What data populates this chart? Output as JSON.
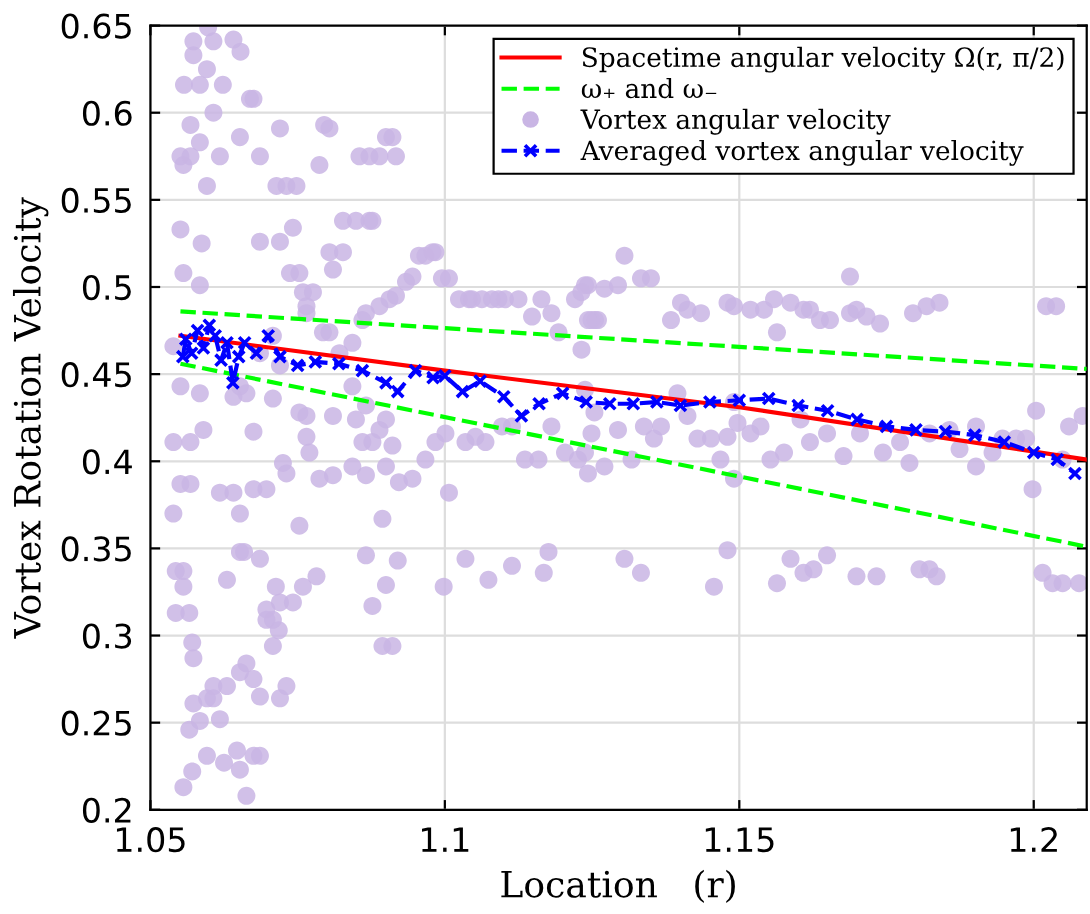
{
  "chart_data": {
    "type": "scatter",
    "xlabel": "Location   (r)",
    "ylabel": "Vortex Rotation Velocity",
    "xlim": [
      1.05,
      1.209
    ],
    "ylim": [
      0.2,
      0.65
    ],
    "xticks": [
      1.05,
      1.1,
      1.15,
      1.2
    ],
    "yticks": [
      0.2,
      0.25,
      0.3,
      0.35,
      0.4,
      0.45,
      0.5,
      0.55,
      0.6,
      0.65
    ],
    "grid": true,
    "legend": "top right",
    "series": [
      {
        "name": "Spacetime angular velocity Ω(r, π/2)",
        "type": "line",
        "color": "#ff0000",
        "line_style": "solid",
        "marker": "none",
        "x": [
          1.0551,
          1.1,
          1.15,
          1.209
        ],
        "values": [
          0.472,
          0.452,
          0.431,
          0.401
        ]
      },
      {
        "name": "ω₊ and ω₋",
        "type": "line",
        "color": "#00ff00",
        "line_style": "dashed",
        "marker": "none",
        "x": [
          1.0551,
          1.209
        ],
        "values": [
          0.486,
          0.453
        ]
      },
      {
        "type": "line",
        "color": "#00ff00",
        "line_style": "dashed",
        "marker": "none",
        "x": [
          1.0551,
          1.209
        ],
        "values": [
          0.456,
          0.351
        ]
      },
      {
        "name": "Vortex angular velocity",
        "color": "#c9b5e4",
        "marker": "circle",
        "x": [
          1.0556,
          1.0551,
          1.0568,
          1.0573,
          1.0557,
          1.0584,
          1.0573,
          1.0598,
          1.0607,
          1.0596,
          1.0607,
          1.0618,
          1.0596,
          1.0584,
          1.0568,
          1.0551,
          1.0556,
          1.0584,
          1.0587,
          1.0539,
          1.0551,
          1.0584,
          1.059,
          1.0539,
          1.0568,
          1.0551,
          1.0568,
          1.0539,
          1.0556,
          1.0543,
          1.0556,
          1.0566,
          1.0543,
          1.0573,
          1.0571,
          1.0573,
          1.0596,
          1.0607,
          1.0584,
          1.0566,
          1.0556,
          1.0571,
          1.0596,
          1.0618,
          1.0607,
          1.063,
          1.0625,
          1.0652,
          1.0647,
          1.0663,
          1.0675,
          1.0686,
          1.0686,
          1.0663,
          1.0652,
          1.0675,
          1.0708,
          1.0697,
          1.0697,
          1.0708,
          1.0718,
          1.0713,
          1.0686,
          1.0659,
          1.0652,
          1.063,
          1.0652,
          1.0618,
          1.0641,
          1.0675,
          1.0697,
          1.0675,
          1.0641,
          1.0652,
          1.0663,
          1.0708,
          1.0753,
          1.0765,
          1.0725,
          1.0731,
          1.0753,
          1.072,
          1.0742,
          1.0759,
          1.0782,
          1.0731,
          1.072,
          1.072,
          1.0686,
          1.0708,
          1.0686,
          1.072,
          1.0742,
          1.0737,
          1.0753,
          1.0759,
          1.0765,
          1.0776,
          1.0765,
          1.0793,
          1.0804,
          1.081,
          1.0827,
          1.0804,
          1.0821,
          1.0843,
          1.086,
          1.0866,
          1.0889,
          1.0906,
          1.0917,
          1.0934,
          1.0945,
          1.0956,
          1.0967,
          1.0984,
          1.0979,
          1.0995,
          1.1007,
          1.1024,
          1.1041,
          1.1046,
          1.1063,
          1.108,
          1.1091,
          1.1102,
          1.1125,
          1.1148,
          1.1164,
          1.1181,
          1.1193,
          1.1221,
          1.1243,
          1.1255,
          1.072,
          1.0731,
          1.0714,
          1.0748,
          1.0787,
          1.0795,
          1.0804,
          1.0827,
          1.0849,
          1.0872,
          1.0877,
          1.0855,
          1.0872,
          1.0889,
          1.0917,
          1.09,
          1.0911,
          1.0641,
          1.0653,
          1.0675,
          1.0669,
          1.0623,
          1.0652,
          1.0686,
          1.081,
          1.0849,
          1.0843,
          1.0866,
          1.0889,
          1.086,
          1.0877,
          1.09,
          1.0911,
          1.09,
          1.0866,
          1.0843,
          1.081,
          1.0787,
          1.0765,
          1.077,
          1.0922,
          1.0945,
          1.0967,
          1.0984,
          1.1001,
          1.1035,
          1.1052,
          1.1069,
          1.1007,
          1.0894,
          1.0866,
          1.09,
          1.0877,
          1.0894,
          1.0911,
          1.092,
          1.0998,
          1.1035,
          1.1074,
          1.1114,
          1.1168,
          1.1176,
          1.1097,
          1.1114,
          1.1136,
          1.1159,
          1.1181,
          1.1204,
          1.1226,
          1.1243,
          1.1294,
          1.1305,
          1.1333,
          1.135,
          1.1271,
          1.126,
          1.1249,
          1.1243,
          1.1238,
          1.1232,
          1.1232,
          1.1238,
          1.1254,
          1.1249,
          1.1238,
          1.1271,
          1.1294,
          1.1317,
          1.1338,
          1.1355,
          1.1367,
          1.1384,
          1.1401,
          1.1412,
          1.1435,
          1.1395,
          1.1412,
          1.1429,
          1.1452,
          1.1468,
          1.148,
          1.1491,
          1.1491,
          1.148,
          1.1457,
          1.1305,
          1.1333,
          1.1587,
          1.1609,
          1.1626,
          1.1649,
          1.1564,
          1.1699,
          1.1733,
          1.1806,
          1.1823,
          1.1835,
          1.148,
          1.1491,
          1.1519,
          1.1542,
          1.1559,
          1.1587,
          1.1564,
          1.1609,
          1.162,
          1.1637,
          1.1654,
          1.1688,
          1.1699,
          1.1716,
          1.1739,
          1.1795,
          1.1818,
          1.184,
          1.1688,
          1.1497,
          1.1519,
          1.1536,
          1.1553,
          1.1576,
          1.1604,
          1.162,
          1.1649,
          1.1677,
          1.1705,
          1.1744,
          1.1773,
          1.1789,
          1.1823,
          1.1857,
          1.1874,
          1.1902,
          1.1902,
          1.193,
          1.1947,
          1.197,
          1.1987,
          1.1998,
          1.2004,
          1.2015,
          1.2032,
          1.2049,
          1.2021,
          1.2038,
          1.206,
          1.2083,
          1.2077,
          1.2049
        ],
        "values": [
          0.57,
          0.575,
          0.575,
          0.633,
          0.616,
          0.616,
          0.641,
          0.649,
          0.641,
          0.625,
          0.6,
          0.575,
          0.558,
          0.583,
          0.593,
          0.533,
          0.508,
          0.501,
          0.525,
          0.466,
          0.443,
          0.439,
          0.418,
          0.411,
          0.411,
          0.387,
          0.387,
          0.37,
          0.337,
          0.337,
          0.328,
          0.313,
          0.313,
          0.287,
          0.296,
          0.261,
          0.264,
          0.264,
          0.251,
          0.246,
          0.213,
          0.222,
          0.231,
          0.252,
          0.271,
          0.271,
          0.227,
          0.223,
          0.234,
          0.208,
          0.231,
          0.231,
          0.265,
          0.284,
          0.279,
          0.275,
          0.309,
          0.315,
          0.309,
          0.294,
          0.303,
          0.328,
          0.344,
          0.348,
          0.348,
          0.332,
          0.37,
          0.382,
          0.382,
          0.384,
          0.384,
          0.417,
          0.437,
          0.443,
          0.439,
          0.436,
          0.428,
          0.426,
          0.399,
          0.393,
          0.363,
          0.319,
          0.319,
          0.328,
          0.334,
          0.271,
          0.264,
          0.455,
          0.462,
          0.472,
          0.526,
          0.526,
          0.534,
          0.508,
          0.508,
          0.497,
          0.489,
          0.497,
          0.485,
          0.474,
          0.52,
          0.51,
          0.52,
          0.474,
          0.462,
          0.468,
          0.481,
          0.485,
          0.489,
          0.493,
          0.495,
          0.503,
          0.506,
          0.518,
          0.518,
          0.52,
          0.52,
          0.505,
          0.505,
          0.493,
          0.493,
          0.493,
          0.493,
          0.493,
          0.493,
          0.493,
          0.493,
          0.483,
          0.493,
          0.485,
          0.474,
          0.493,
          0.501,
          0.481,
          0.591,
          0.558,
          0.558,
          0.558,
          0.57,
          0.593,
          0.591,
          0.538,
          0.538,
          0.538,
          0.538,
          0.575,
          0.575,
          0.575,
          0.575,
          0.586,
          0.586,
          0.642,
          0.635,
          0.608,
          0.608,
          0.616,
          0.586,
          0.575,
          0.426,
          0.424,
          0.443,
          0.432,
          0.418,
          0.411,
          0.411,
          0.424,
          0.409,
          0.397,
          0.392,
          0.397,
          0.392,
          0.39,
          0.414,
          0.405,
          0.388,
          0.39,
          0.401,
          0.411,
          0.416,
          0.411,
          0.414,
          0.411,
          0.382,
          0.367,
          0.346,
          0.329,
          0.317,
          0.294,
          0.294,
          0.343,
          0.328,
          0.344,
          0.332,
          0.34,
          0.336,
          0.348,
          0.42,
          0.42,
          0.401,
          0.401,
          0.42,
          0.405,
          0.401,
          0.393,
          0.501,
          0.518,
          0.505,
          0.505,
          0.499,
          0.481,
          0.481,
          0.481,
          0.501,
          0.497,
          0.464,
          0.441,
          0.428,
          0.416,
          0.405,
          0.397,
          0.418,
          0.401,
          0.42,
          0.413,
          0.42,
          0.481,
          0.491,
          0.487,
          0.485,
          0.439,
          0.426,
          0.413,
          0.413,
          0.401,
          0.414,
          0.434,
          0.39,
          0.349,
          0.328,
          0.344,
          0.336,
          0.344,
          0.336,
          0.338,
          0.346,
          0.33,
          0.334,
          0.334,
          0.338,
          0.338,
          0.334,
          0.491,
          0.489,
          0.487,
          0.487,
          0.493,
          0.491,
          0.474,
          0.487,
          0.487,
          0.481,
          0.481,
          0.485,
          0.487,
          0.483,
          0.479,
          0.485,
          0.489,
          0.491,
          0.506,
          0.422,
          0.416,
          0.42,
          0.401,
          0.405,
          0.424,
          0.411,
          0.416,
          0.403,
          0.416,
          0.405,
          0.411,
          0.399,
          0.416,
          0.418,
          0.407,
          0.42,
          0.397,
          0.405,
          0.413,
          0.413,
          0.413,
          0.384,
          0.429,
          0.336,
          0.33,
          0.33,
          0.489,
          0.489,
          0.42,
          0.426,
          0.33,
          0.401
        ]
      },
      {
        "name": "Averaged vortex angular velocity",
        "type": "line",
        "color": "#0000ff",
        "line_style": "dashed",
        "marker": "cross",
        "x": [
          1.0555,
          1.056,
          1.057,
          1.058,
          1.059,
          1.06,
          1.061,
          1.062,
          1.063,
          1.064,
          1.065,
          1.066,
          1.068,
          1.07,
          1.072,
          1.075,
          1.078,
          1.082,
          1.086,
          1.09,
          1.092,
          1.095,
          1.098,
          1.1,
          1.103,
          1.106,
          1.11,
          1.113,
          1.116,
          1.12,
          1.124,
          1.128,
          1.132,
          1.136,
          1.14,
          1.145,
          1.15,
          1.155,
          1.16,
          1.165,
          1.17,
          1.175,
          1.18,
          1.185,
          1.19,
          1.195,
          1.2,
          1.204,
          1.207
        ],
        "values": [
          0.46,
          0.47,
          0.462,
          0.475,
          0.465,
          0.478,
          0.472,
          0.458,
          0.468,
          0.445,
          0.46,
          0.468,
          0.462,
          0.472,
          0.46,
          0.455,
          0.457,
          0.456,
          0.452,
          0.445,
          0.44,
          0.452,
          0.448,
          0.449,
          0.44,
          0.446,
          0.437,
          0.426,
          0.433,
          0.439,
          0.434,
          0.433,
          0.433,
          0.434,
          0.432,
          0.434,
          0.435,
          0.436,
          0.432,
          0.429,
          0.424,
          0.42,
          0.418,
          0.417,
          0.415,
          0.411,
          0.405,
          0.401,
          0.393
        ]
      }
    ]
  }
}
